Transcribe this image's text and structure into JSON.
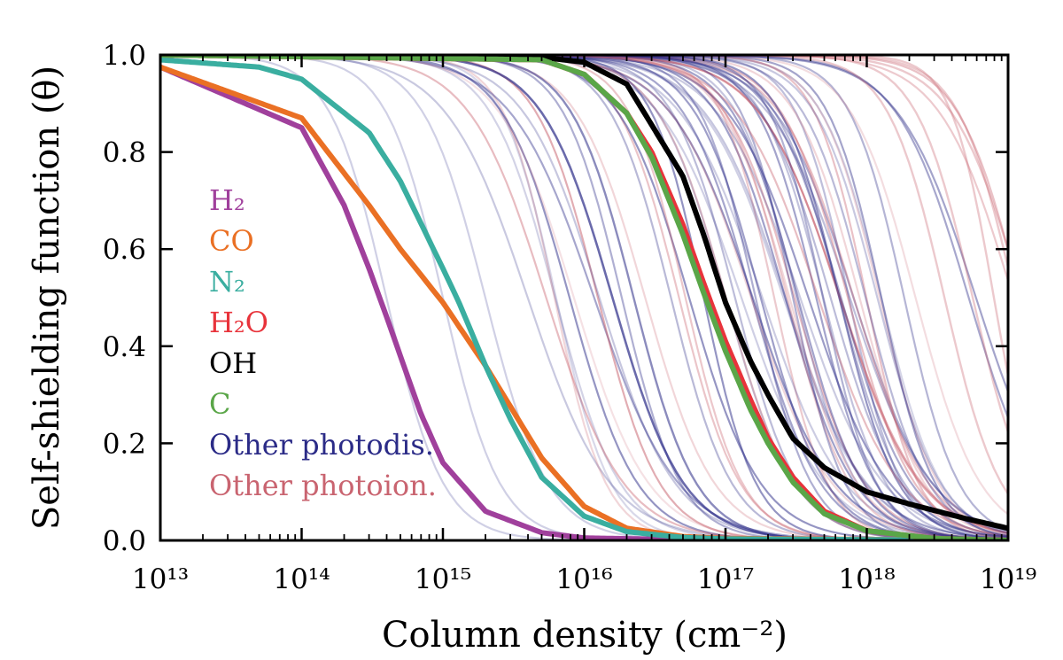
{
  "chart_data": {
    "type": "line",
    "xlabel": "Column density (cm⁻²)",
    "ylabel": "Self-shielding function (θ)",
    "x_scale": "log",
    "xlim": [
      10000000000000.0,
      1e+19
    ],
    "ylim": [
      0.0,
      1.0
    ],
    "x_ticks": [
      {
        "value": 10000000000000.0,
        "label": "10¹³"
      },
      {
        "value": 100000000000000.0,
        "label": "10¹⁴"
      },
      {
        "value": 1000000000000000.0,
        "label": "10¹⁵"
      },
      {
        "value": 1e+16,
        "label": "10¹⁶"
      },
      {
        "value": 1e+17,
        "label": "10¹⁷"
      },
      {
        "value": 1e+18,
        "label": "10¹⁸"
      },
      {
        "value": 1e+19,
        "label": "10¹⁹"
      }
    ],
    "y_ticks": [
      {
        "value": 0.0,
        "label": "0.0"
      },
      {
        "value": 0.2,
        "label": "0.2"
      },
      {
        "value": 0.4,
        "label": "0.4"
      },
      {
        "value": 0.6,
        "label": "0.6"
      },
      {
        "value": 0.8,
        "label": "0.8"
      },
      {
        "value": 1.0,
        "label": "1.0"
      }
    ],
    "grid": false,
    "legend_position": "left",
    "series": [
      {
        "name": "H₂",
        "color": "#a0409c",
        "x": [
          10000000000000.0,
          100000000000000.0,
          200000000000000.0,
          300000000000000.0,
          400000000000000.0,
          500000000000000.0,
          700000000000000.0,
          1000000000000000.0,
          2000000000000000.0,
          5000000000000000.0,
          1e+16,
          1e+17,
          1e+19
        ],
        "y": [
          0.975,
          0.85,
          0.69,
          0.56,
          0.46,
          0.38,
          0.26,
          0.16,
          0.06,
          0.016,
          0.005,
          0.0,
          0.0
        ]
      },
      {
        "name": "CO",
        "color": "#ea7024",
        "x": [
          10000000000000.0,
          100000000000000.0,
          300000000000000.0,
          500000000000000.0,
          1000000000000000.0,
          2000000000000000.0,
          5000000000000000.0,
          1e+16,
          2e+16,
          5e+16,
          1e+17,
          1e+19
        ],
        "y": [
          0.975,
          0.87,
          0.69,
          0.6,
          0.49,
          0.36,
          0.17,
          0.07,
          0.025,
          0.008,
          0.004,
          0.0
        ]
      },
      {
        "name": "N₂",
        "color": "#3aaea0",
        "x": [
          10000000000000.0,
          50000000000000.0,
          100000000000000.0,
          300000000000000.0,
          500000000000000.0,
          1000000000000000.0,
          1300000000000000.0,
          2000000000000000.0,
          3000000000000000.0,
          5000000000000000.0,
          1e+16,
          2e+16,
          5e+16,
          1e+17,
          1e+19
        ],
        "y": [
          0.99,
          0.975,
          0.95,
          0.84,
          0.74,
          0.56,
          0.49,
          0.36,
          0.25,
          0.13,
          0.05,
          0.018,
          0.006,
          0.003,
          0.0
        ]
      },
      {
        "name": "H₂O",
        "color": "#e8333b",
        "x": [
          10000000000000.0,
          5000000000000000.0,
          1e+16,
          2e+16,
          3e+16,
          5e+16,
          7e+16,
          1e+17,
          1.5e+17,
          2e+17,
          3e+17,
          5e+17,
          1e+18,
          3e+18,
          1e+19
        ],
        "y": [
          1.0,
          0.99,
          0.96,
          0.88,
          0.8,
          0.65,
          0.53,
          0.41,
          0.29,
          0.21,
          0.13,
          0.06,
          0.02,
          0.004,
          0.0
        ]
      },
      {
        "name": "OH",
        "color": "#000000",
        "x": [
          10000000000000.0,
          5000000000000000.0,
          1e+16,
          2e+16,
          5e+16,
          7e+16,
          1e+17,
          1.5e+17,
          2e+17,
          3e+17,
          5e+17,
          1e+18,
          2e+18,
          5e+18,
          1e+19
        ],
        "y": [
          1.0,
          0.995,
          0.985,
          0.94,
          0.75,
          0.63,
          0.49,
          0.37,
          0.3,
          0.21,
          0.15,
          0.1,
          0.075,
          0.045,
          0.025
        ]
      },
      {
        "name": "C",
        "color": "#5aa648",
        "x": [
          10000000000000.0,
          5000000000000000.0,
          1e+16,
          2e+16,
          3e+16,
          5e+16,
          7e+16,
          1e+17,
          1.5e+17,
          2e+17,
          3e+17,
          5e+17,
          1e+18,
          3e+18,
          1e+19
        ],
        "y": [
          1.0,
          0.99,
          0.96,
          0.88,
          0.79,
          0.63,
          0.51,
          0.39,
          0.27,
          0.2,
          0.12,
          0.055,
          0.02,
          0.004,
          0.0
        ]
      }
    ],
    "background_groups": [
      {
        "name": "Other photodis.",
        "color": "#2b2b87"
      },
      {
        "name": "Other photoion.",
        "color": "#c96470"
      }
    ]
  }
}
